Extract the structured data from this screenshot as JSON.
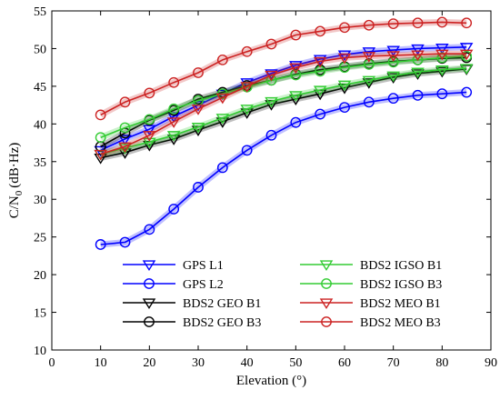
{
  "chart_data": {
    "type": "line",
    "xlabel": "Elevation (°)",
    "ylabel_main": "C/N",
    "ylabel_sub": "0",
    "ylabel_unit": "(dB·Hz)",
    "xlim": [
      0,
      90
    ],
    "ylim": [
      10,
      55
    ],
    "xticks": [
      0,
      10,
      20,
      30,
      40,
      50,
      60,
      70,
      80,
      90
    ],
    "yticks": [
      10,
      15,
      20,
      25,
      30,
      35,
      40,
      45,
      50,
      55
    ],
    "grid": false,
    "legend_position": "bottom-right",
    "x": [
      10,
      15,
      20,
      25,
      30,
      35,
      40,
      45,
      50,
      55,
      60,
      65,
      70,
      75,
      80,
      85
    ],
    "series": [
      {
        "name": "GPS L1",
        "marker": "triangle-down",
        "color": "#0000ff",
        "values": [
          36.5,
          38.0,
          39.3,
          41.0,
          42.5,
          44.0,
          45.5,
          46.7,
          47.8,
          48.6,
          49.2,
          49.6,
          49.8,
          50.0,
          50.1,
          50.2
        ]
      },
      {
        "name": "GPS L2",
        "marker": "circle",
        "color": "#0000ff",
        "values": [
          24.0,
          24.3,
          26.0,
          28.7,
          31.6,
          34.2,
          36.5,
          38.5,
          40.2,
          41.3,
          42.2,
          42.9,
          43.4,
          43.8,
          44.0,
          44.2
        ]
      },
      {
        "name": "BDS2 GEO B1",
        "marker": "triangle-down",
        "color": "#000000",
        "values": [
          35.5,
          36.2,
          37.2,
          38.0,
          39.2,
          40.3,
          41.5,
          42.6,
          43.3,
          44.0,
          44.8,
          45.5,
          46.2,
          46.7,
          47.0,
          47.3
        ]
      },
      {
        "name": "BDS2 GEO B3",
        "marker": "circle",
        "color": "#000000",
        "values": [
          37.0,
          38.8,
          40.5,
          41.8,
          43.3,
          44.2,
          45.1,
          45.8,
          46.6,
          47.2,
          47.6,
          48.0,
          48.3,
          48.5,
          48.7,
          48.8
        ]
      },
      {
        "name": "BDS2 IGSO B1",
        "marker": "triangle-down",
        "color": "#33cc33",
        "values": [
          36.0,
          36.8,
          37.6,
          38.5,
          39.6,
          40.8,
          42.0,
          43.0,
          43.8,
          44.5,
          45.2,
          45.8,
          46.4,
          46.9,
          47.2,
          47.4
        ]
      },
      {
        "name": "BDS2 IGSO B3",
        "marker": "circle",
        "color": "#33cc33",
        "values": [
          38.2,
          39.5,
          40.6,
          42.0,
          43.1,
          44.0,
          44.9,
          45.8,
          46.5,
          47.0,
          47.5,
          47.9,
          48.2,
          48.5,
          48.8,
          49.0
        ]
      },
      {
        "name": "BDS2 MEO B1",
        "marker": "triangle-down",
        "color": "#cc2222",
        "values": [
          36.0,
          37.0,
          38.5,
          40.3,
          42.0,
          43.5,
          45.0,
          46.5,
          47.5,
          48.3,
          48.8,
          49.0,
          49.1,
          49.2,
          49.3,
          49.3
        ]
      },
      {
        "name": "BDS2 MEO B3",
        "marker": "circle",
        "color": "#cc2222",
        "values": [
          41.2,
          42.9,
          44.1,
          45.5,
          46.8,
          48.5,
          49.6,
          50.6,
          51.8,
          52.3,
          52.8,
          53.1,
          53.3,
          53.4,
          53.5,
          53.4
        ]
      }
    ]
  }
}
